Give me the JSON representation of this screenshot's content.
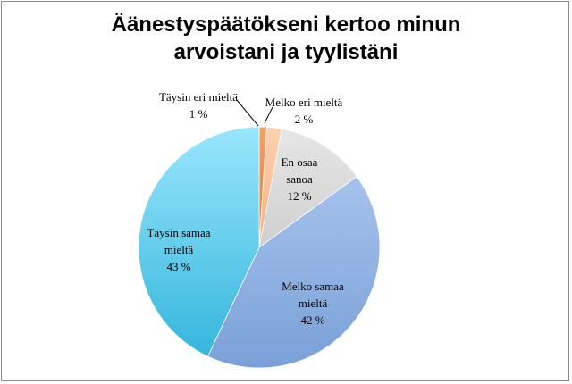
{
  "chart_data": {
    "type": "pie",
    "title_lines": [
      "Äänestyspäätökseni kertoo minun",
      "arvoistani ja tyylistäni"
    ],
    "slices": [
      {
        "name": "Täysin eri mieltä",
        "label_lines": [
          "Täysin eri mieltä"
        ],
        "value": 1,
        "value_label": "1 %",
        "color": "#f08a3c"
      },
      {
        "name": "Melko eri mieltä",
        "label_lines": [
          "Melko eri mieltä"
        ],
        "value": 2,
        "value_label": "2 %",
        "color": "#f9be92"
      },
      {
        "name": "En osaa sanoa",
        "label_lines": [
          "En osaa",
          "sanoa"
        ],
        "value": 12,
        "value_label": "12 %",
        "color": "#d9d9d9"
      },
      {
        "name": "Melko samaa mieltä",
        "label_lines": [
          "Melko samaa",
          "mieltä"
        ],
        "value": 42,
        "value_label": "42 %",
        "color": "#8fb1e1"
      },
      {
        "name": "Täysin samaa mieltä",
        "label_lines": [
          "Täysin samaa",
          "mieltä"
        ],
        "value": 43,
        "value_label": "43 %",
        "color": "#4ec5ea"
      }
    ]
  }
}
